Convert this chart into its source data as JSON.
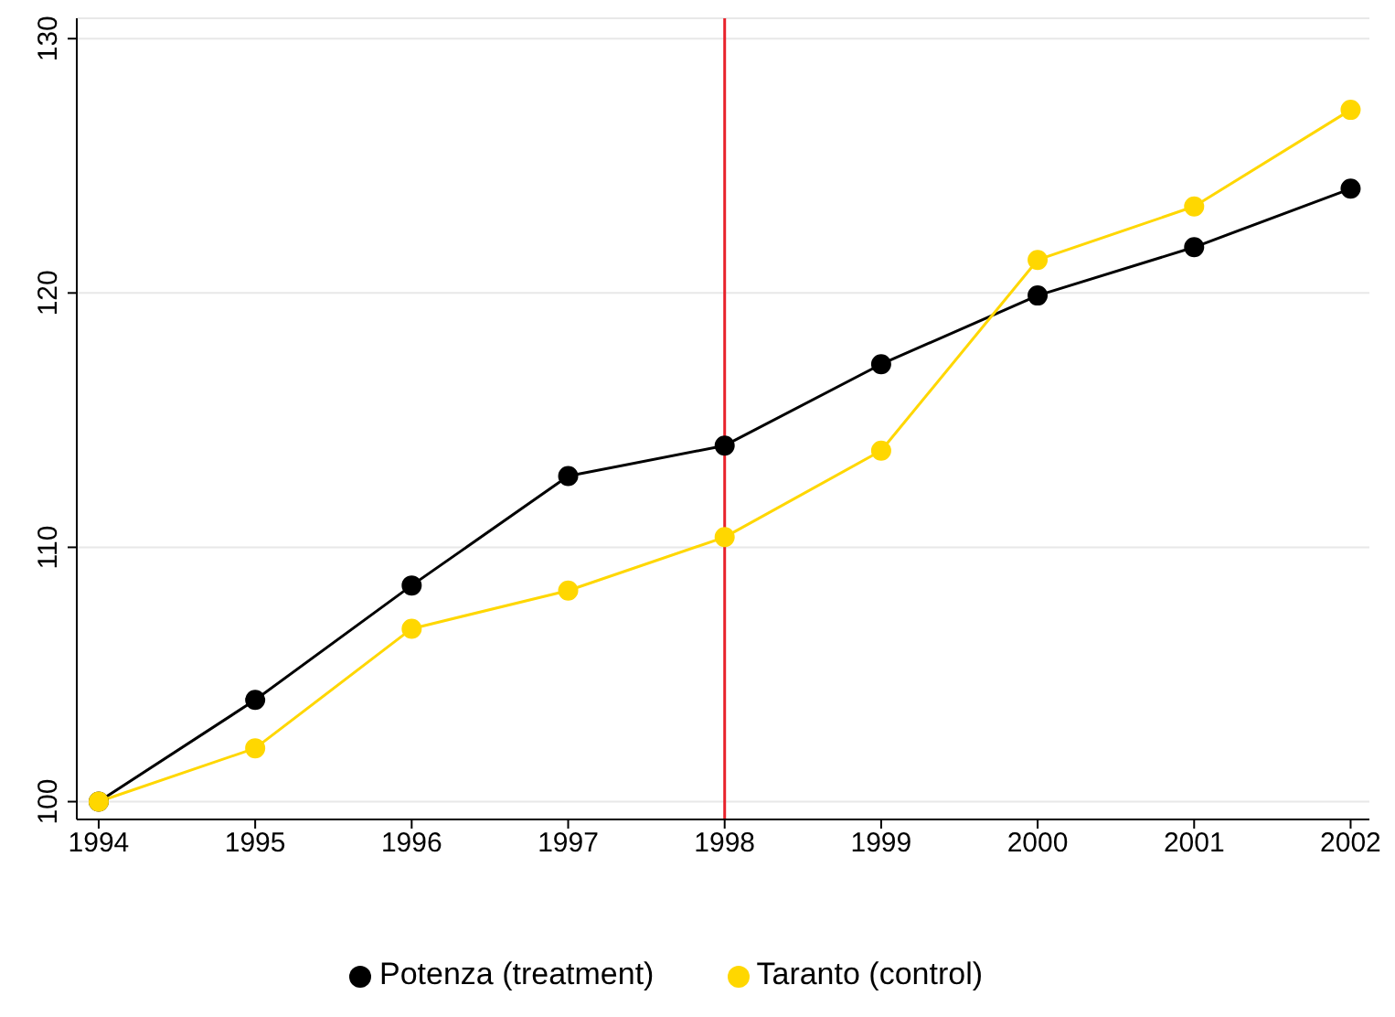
{
  "chart_data": {
    "type": "line",
    "x": [
      1994,
      1995,
      1996,
      1997,
      1998,
      1999,
      2000,
      2001,
      2002
    ],
    "series": [
      {
        "name": "Potenza (treatment)",
        "color": "#000000",
        "values": [
          100,
          104.0,
          108.5,
          112.8,
          114.0,
          117.2,
          119.9,
          121.8,
          124.1
        ]
      },
      {
        "name": "Taranto (control)",
        "color": "#ffd700",
        "values": [
          100,
          102.1,
          106.8,
          108.3,
          110.4,
          113.8,
          121.3,
          123.4,
          127.2
        ]
      }
    ],
    "xlim": [
      1993.86,
      2002.12
    ],
    "xticks": [
      1994,
      1995,
      1996,
      1997,
      1998,
      1999,
      2000,
      2001,
      2002
    ],
    "ylim": [
      99.3,
      130.8
    ],
    "yticks": [
      100,
      110,
      120,
      130
    ],
    "ref_lines": [
      {
        "axis": "x",
        "value": 1998,
        "color": "#e8222b"
      }
    ],
    "grid": "y",
    "legend": "bottom",
    "marker": "circle",
    "line_style": "solid"
  }
}
